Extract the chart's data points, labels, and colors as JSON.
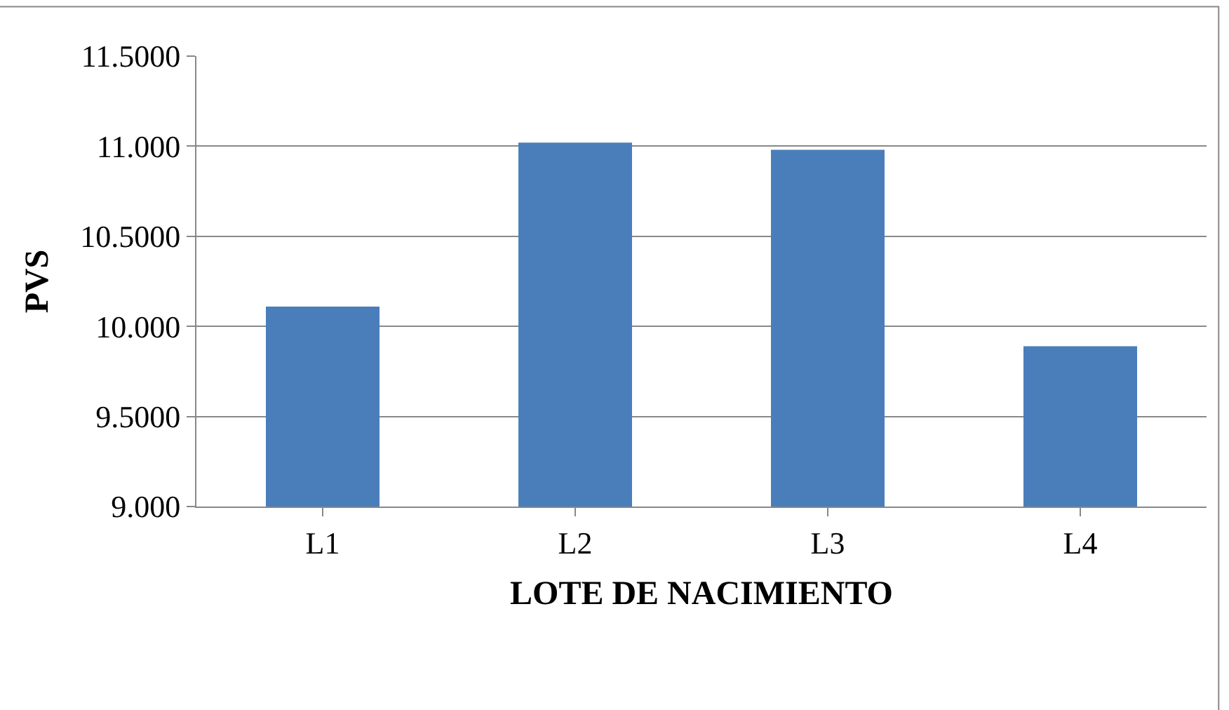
{
  "chart_data": {
    "type": "bar",
    "xlabel": "LOTE DE NACIMIENTO",
    "ylabel": "PVS",
    "categories": [
      "L1",
      "L2",
      "L3",
      "L4"
    ],
    "values": [
      10.11,
      11.02,
      10.98,
      9.89
    ],
    "color": "#4a7ebb",
    "ylim": [
      9.0,
      11.5
    ],
    "yticks": [
      {
        "value": 9.0,
        "label": "9.000"
      },
      {
        "value": 9.5,
        "label": "9.5000"
      },
      {
        "value": 10.0,
        "label": "10.000"
      },
      {
        "value": 10.5,
        "label": "10.5000"
      },
      {
        "value": 11.0,
        "label": "11.000"
      },
      {
        "value": 11.5,
        "label": "11.5000"
      }
    ],
    "grid": "y"
  }
}
